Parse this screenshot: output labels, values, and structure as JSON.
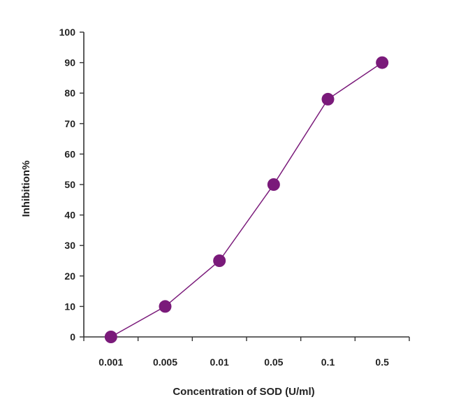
{
  "chart_data": {
    "type": "line",
    "title": "",
    "xlabel": "Concentration of SOD (U/ml)",
    "ylabel": "Inhibition%",
    "categories": [
      "0.001",
      "0.005",
      "0.01",
      "0.05",
      "0.1",
      "0.5"
    ],
    "series": [
      {
        "values": [
          0,
          10,
          25,
          50,
          78,
          90
        ],
        "color": "#7a1a7a"
      }
    ],
    "ylim": [
      0,
      100
    ],
    "yticks": [
      0,
      10,
      20,
      30,
      40,
      50,
      60,
      70,
      80,
      90,
      100
    ],
    "grid": false,
    "legend": "none",
    "marker": "circle"
  }
}
